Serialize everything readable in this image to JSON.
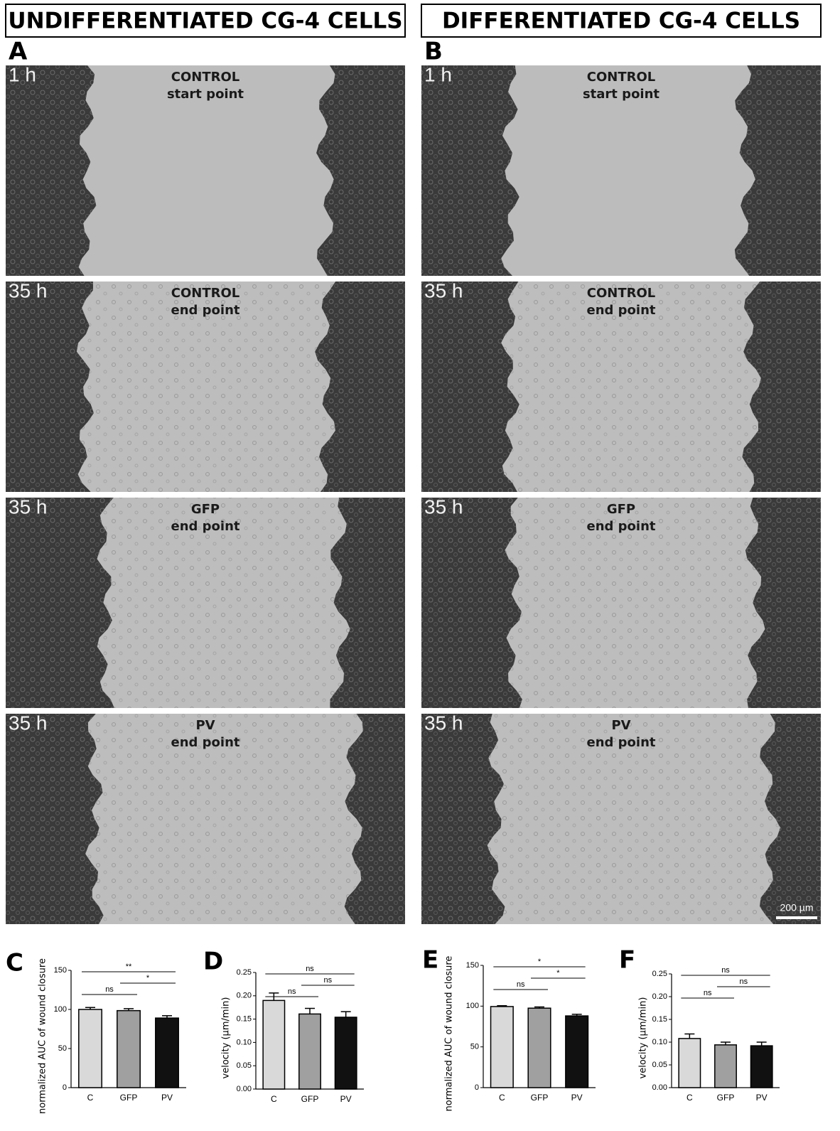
{
  "panels": [
    {
      "header": "UNDIFFERENTIATED CG-4 CELLS",
      "letter": "A",
      "images": [
        {
          "time": "1 h",
          "condition": "CONTROL",
          "stage": "start point"
        },
        {
          "time": "35 h",
          "condition": "CONTROL",
          "stage": "end point"
        },
        {
          "time": "35 h",
          "condition": "GFP",
          "stage": "end point"
        },
        {
          "time": "35 h",
          "condition": "PV",
          "stage": "end point"
        }
      ]
    },
    {
      "header": "DIFFERENTIATED CG-4 CELLS",
      "letter": "B",
      "images": [
        {
          "time": "1 h",
          "condition": "CONTROL",
          "stage": "start point"
        },
        {
          "time": "35 h",
          "condition": "CONTROL",
          "stage": "end point"
        },
        {
          "time": "35 h",
          "condition": "GFP",
          "stage": "end point"
        },
        {
          "time": "35 h",
          "condition": "PV",
          "stage": "end point"
        }
      ]
    }
  ],
  "scale_bar": "200 µm",
  "chart_data": [
    {
      "type": "bar",
      "letter": "C",
      "ylabel": "normalized AUC of wound closure",
      "categories": [
        "C",
        "GFP",
        "PV"
      ],
      "values": [
        100,
        98.5,
        89
      ],
      "errors": [
        2.5,
        2.5,
        3
      ],
      "colors": [
        "#d9d9d9",
        "#a0a0a0",
        "#111111"
      ],
      "ylim": [
        0,
        150
      ],
      "yticks": [
        0,
        50,
        100,
        150
      ],
      "significance": [
        {
          "pair": [
            "C",
            "GFP"
          ],
          "label": "ns"
        },
        {
          "pair": [
            "GFP",
            "PV"
          ],
          "label": "*"
        },
        {
          "pair": [
            "C",
            "PV"
          ],
          "label": "**"
        }
      ]
    },
    {
      "type": "bar",
      "letter": "D",
      "ylabel": "velocity (µm/min)",
      "categories": [
        "C",
        "GFP",
        "PV"
      ],
      "values": [
        0.19,
        0.161,
        0.154
      ],
      "errors": [
        0.016,
        0.012,
        0.012
      ],
      "colors": [
        "#d9d9d9",
        "#a0a0a0",
        "#111111"
      ],
      "ylim": [
        0,
        0.25
      ],
      "yticks": [
        {
          "value": 0,
          "label": "0.00"
        },
        0.05,
        {
          "value": 0.1,
          "label": "0.10"
        },
        0.15,
        {
          "value": 0.2,
          "label": "0.20"
        },
        0.25
      ],
      "significance": [
        {
          "pair": [
            "C",
            "GFP"
          ],
          "label": "ns"
        },
        {
          "pair": [
            "GFP",
            "PV"
          ],
          "label": "ns"
        },
        {
          "pair": [
            "C",
            "PV"
          ],
          "label": "ns"
        }
      ]
    },
    {
      "type": "bar",
      "letter": "E",
      "ylabel": "normalized AUC of wound closure",
      "categories": [
        "C",
        "GFP",
        "PV"
      ],
      "values": [
        99.5,
        97.5,
        88
      ],
      "errors": [
        1,
        1.5,
        2
      ],
      "colors": [
        "#d9d9d9",
        "#a0a0a0",
        "#111111"
      ],
      "ylim": [
        0,
        150
      ],
      "yticks": [
        0,
        50,
        100,
        150
      ],
      "significance": [
        {
          "pair": [
            "C",
            "GFP"
          ],
          "label": "ns"
        },
        {
          "pair": [
            "GFP",
            "PV"
          ],
          "label": "*"
        },
        {
          "pair": [
            "C",
            "PV"
          ],
          "label": "*"
        }
      ]
    },
    {
      "type": "bar",
      "letter": "F",
      "ylabel": "velocity (µm/min)",
      "categories": [
        "C",
        "GFP",
        "PV"
      ],
      "values": [
        0.108,
        0.094,
        0.092
      ],
      "errors": [
        0.01,
        0.006,
        0.008
      ],
      "colors": [
        "#d9d9d9",
        "#a0a0a0",
        "#111111"
      ],
      "ylim": [
        0,
        0.25
      ],
      "yticks": [
        {
          "value": 0,
          "label": "0.00"
        },
        0.05,
        {
          "value": 0.1,
          "label": "0.10"
        },
        0.15,
        {
          "value": 0.2,
          "label": "0.20"
        },
        0.25
      ],
      "significance": [
        {
          "pair": [
            "C",
            "GFP"
          ],
          "label": "ns"
        },
        {
          "pair": [
            "GFP",
            "PV"
          ],
          "label": "ns"
        },
        {
          "pair": [
            "C",
            "PV"
          ],
          "label": "ns"
        }
      ]
    }
  ]
}
